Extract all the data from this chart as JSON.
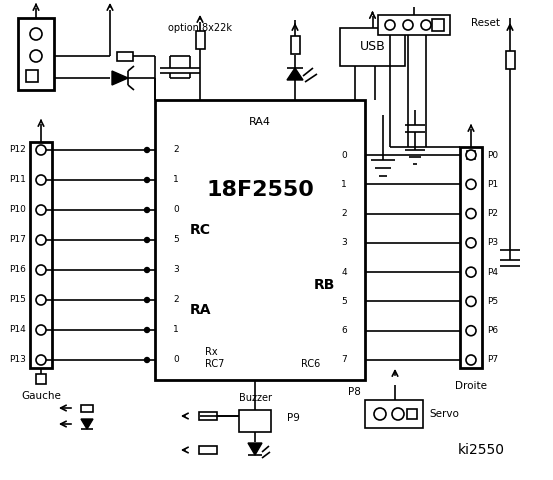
{
  "title": "ki2550",
  "chip_label": "18F2550",
  "chip_sub": "RA4",
  "rc_label": "RC",
  "ra_label": "RA",
  "rb_label": "RB",
  "rc_pin_labels": [
    "2",
    "1",
    "0",
    "5",
    "3",
    "2",
    "1",
    "0"
  ],
  "rb_pin_labels": [
    "0",
    "1",
    "2",
    "3",
    "4",
    "5",
    "6",
    "7"
  ],
  "left_labels": [
    "P12",
    "P11",
    "P10",
    "P17",
    "P16",
    "P15",
    "P14",
    "P13"
  ],
  "right_labels": [
    "P0",
    "P1",
    "P2",
    "P3",
    "P4",
    "P5",
    "P6",
    "P7"
  ],
  "left_connector_label": "Gauche",
  "right_connector_label": "Droite",
  "option_label": "option 8x22k",
  "usb_label": "USB",
  "reset_label": "Reset",
  "rx_label": "Rx",
  "rc7_label": "RC7",
  "rc6_label": "RC6",
  "p9_label": "P9",
  "p8_label": "P8",
  "buzzer_label": "Buzzer",
  "servo_label": "Servo",
  "bg_color": "#ffffff",
  "line_color": "#000000"
}
